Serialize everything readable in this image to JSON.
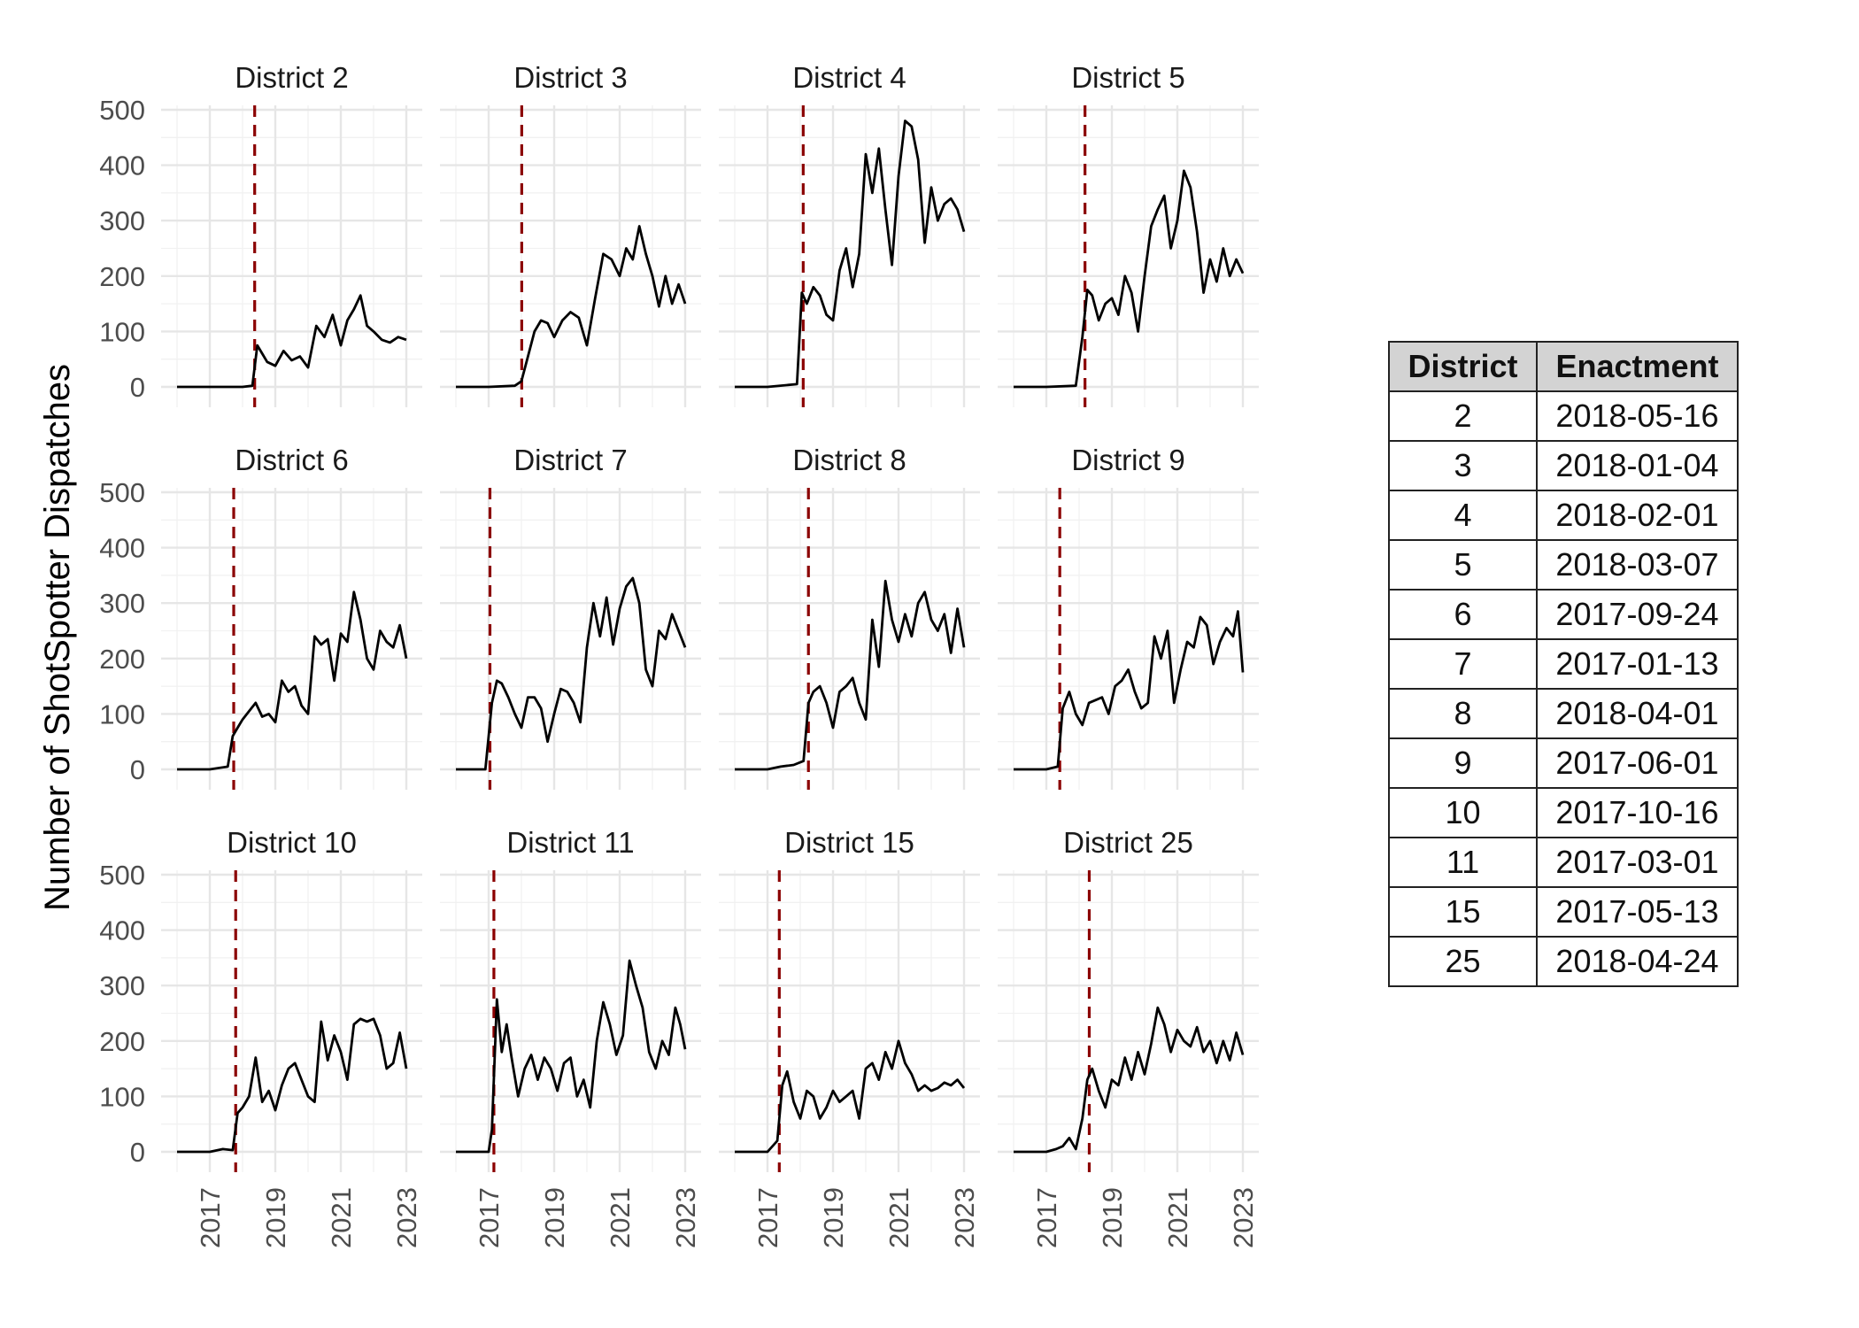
{
  "chart_data": {
    "type": "line",
    "facet_layout": "4 columns x 3 rows",
    "ylabel": "Number of ShotSpotter Dispatches",
    "ylim": [
      0,
      500
    ],
    "y_ticks": [
      0,
      100,
      200,
      300,
      400,
      500
    ],
    "x_ticks": [
      2017,
      2019,
      2021,
      2023
    ],
    "xlim": [
      2016.0,
      2023.0
    ],
    "grid": true,
    "line_color": "#000000",
    "enactment_line_color": "#8b0000",
    "enactment_line_style": "dashed",
    "panels": [
      {
        "title": "District 2",
        "enactment": 2018.37,
        "x": [
          2016.0,
          2017.0,
          2018.0,
          2018.3,
          2018.45,
          2018.6,
          2018.75,
          2019.0,
          2019.25,
          2019.5,
          2019.75,
          2020.0,
          2020.25,
          2020.5,
          2020.75,
          2021.0,
          2021.2,
          2021.4,
          2021.6,
          2021.8,
          2022.0,
          2022.25,
          2022.5,
          2022.75,
          2023.0
        ],
        "values": [
          0,
          0,
          0,
          2,
          75,
          60,
          45,
          38,
          65,
          48,
          55,
          35,
          110,
          90,
          130,
          75,
          120,
          140,
          165,
          110,
          100,
          85,
          80,
          90,
          85
        ]
      },
      {
        "title": "District 3",
        "enactment": 2018.01,
        "x": [
          2016.0,
          2017.0,
          2017.8,
          2018.0,
          2018.2,
          2018.4,
          2018.6,
          2018.8,
          2019.0,
          2019.25,
          2019.5,
          2019.75,
          2020.0,
          2020.25,
          2020.5,
          2020.75,
          2021.0,
          2021.2,
          2021.4,
          2021.6,
          2021.8,
          2022.0,
          2022.2,
          2022.4,
          2022.6,
          2022.8,
          2023.0
        ],
        "values": [
          0,
          0,
          2,
          10,
          55,
          100,
          120,
          115,
          90,
          120,
          135,
          125,
          75,
          160,
          240,
          230,
          200,
          250,
          230,
          290,
          240,
          200,
          145,
          200,
          150,
          185,
          150
        ]
      },
      {
        "title": "District 4",
        "enactment": 2018.09,
        "x": [
          2016.0,
          2017.0,
          2017.9,
          2018.05,
          2018.2,
          2018.4,
          2018.6,
          2018.8,
          2019.0,
          2019.2,
          2019.4,
          2019.6,
          2019.8,
          2020.0,
          2020.2,
          2020.4,
          2020.6,
          2020.8,
          2021.0,
          2021.2,
          2021.4,
          2021.6,
          2021.8,
          2022.0,
          2022.2,
          2022.4,
          2022.6,
          2022.8,
          2023.0
        ],
        "values": [
          0,
          0,
          5,
          170,
          150,
          180,
          165,
          130,
          120,
          210,
          250,
          180,
          240,
          420,
          350,
          430,
          320,
          220,
          380,
          480,
          470,
          410,
          260,
          360,
          300,
          330,
          340,
          320,
          280
        ]
      },
      {
        "title": "District 5",
        "enactment": 2018.18,
        "x": [
          2016.0,
          2017.0,
          2017.9,
          2018.1,
          2018.25,
          2018.4,
          2018.6,
          2018.8,
          2019.0,
          2019.2,
          2019.4,
          2019.6,
          2019.8,
          2020.0,
          2020.2,
          2020.4,
          2020.6,
          2020.8,
          2021.0,
          2021.2,
          2021.4,
          2021.6,
          2021.8,
          2022.0,
          2022.2,
          2022.4,
          2022.6,
          2022.8,
          2023.0
        ],
        "values": [
          0,
          0,
          2,
          90,
          175,
          165,
          120,
          150,
          160,
          130,
          200,
          170,
          100,
          200,
          290,
          320,
          345,
          250,
          300,
          390,
          360,
          280,
          170,
          230,
          190,
          250,
          200,
          230,
          205
        ]
      },
      {
        "title": "District 6",
        "enactment": 2017.73,
        "x": [
          2016.0,
          2017.0,
          2017.55,
          2017.7,
          2017.85,
          2018.0,
          2018.2,
          2018.4,
          2018.6,
          2018.8,
          2019.0,
          2019.2,
          2019.4,
          2019.6,
          2019.8,
          2020.0,
          2020.2,
          2020.4,
          2020.6,
          2020.8,
          2021.0,
          2021.2,
          2021.4,
          2021.6,
          2021.8,
          2022.0,
          2022.2,
          2022.4,
          2022.6,
          2022.8,
          2023.0
        ],
        "values": [
          0,
          0,
          5,
          60,
          75,
          90,
          105,
          120,
          95,
          100,
          85,
          160,
          140,
          150,
          115,
          100,
          240,
          225,
          235,
          160,
          245,
          230,
          320,
          270,
          200,
          180,
          250,
          230,
          220,
          260,
          200
        ]
      },
      {
        "title": "District 7",
        "enactment": 2017.04,
        "x": [
          2016.0,
          2016.9,
          2017.1,
          2017.25,
          2017.4,
          2017.6,
          2017.8,
          2018.0,
          2018.2,
          2018.4,
          2018.6,
          2018.8,
          2019.0,
          2019.2,
          2019.4,
          2019.6,
          2019.8,
          2020.0,
          2020.2,
          2020.4,
          2020.6,
          2020.8,
          2021.0,
          2021.2,
          2021.4,
          2021.6,
          2021.8,
          2022.0,
          2022.2,
          2022.4,
          2022.6,
          2022.8,
          2023.0
        ],
        "values": [
          0,
          0,
          120,
          160,
          155,
          130,
          100,
          75,
          130,
          130,
          110,
          50,
          100,
          145,
          140,
          120,
          85,
          220,
          300,
          240,
          310,
          225,
          290,
          330,
          345,
          300,
          180,
          150,
          250,
          235,
          280,
          250,
          220
        ]
      },
      {
        "title": "District 8",
        "enactment": 2018.25,
        "x": [
          2016.0,
          2017.0,
          2017.4,
          2017.8,
          2018.1,
          2018.25,
          2018.4,
          2018.6,
          2018.8,
          2019.0,
          2019.2,
          2019.4,
          2019.6,
          2019.8,
          2020.0,
          2020.2,
          2020.4,
          2020.6,
          2020.8,
          2021.0,
          2021.2,
          2021.4,
          2021.6,
          2021.8,
          2022.0,
          2022.2,
          2022.4,
          2022.6,
          2022.8,
          2023.0
        ],
        "values": [
          0,
          0,
          5,
          8,
          15,
          120,
          140,
          150,
          120,
          75,
          140,
          150,
          165,
          120,
          90,
          270,
          185,
          340,
          270,
          230,
          280,
          240,
          300,
          320,
          270,
          250,
          280,
          210,
          290,
          220
        ]
      },
      {
        "title": "District 9",
        "enactment": 2017.41,
        "x": [
          2016.0,
          2017.0,
          2017.35,
          2017.5,
          2017.7,
          2017.9,
          2018.1,
          2018.3,
          2018.5,
          2018.7,
          2018.9,
          2019.1,
          2019.3,
          2019.5,
          2019.7,
          2019.9,
          2020.1,
          2020.3,
          2020.5,
          2020.7,
          2020.9,
          2021.1,
          2021.3,
          2021.5,
          2021.7,
          2021.9,
          2022.1,
          2022.3,
          2022.5,
          2022.7,
          2022.85,
          2023.0
        ],
        "values": [
          0,
          0,
          5,
          110,
          140,
          100,
          80,
          120,
          125,
          130,
          100,
          150,
          160,
          180,
          140,
          110,
          120,
          240,
          200,
          250,
          120,
          180,
          230,
          220,
          275,
          260,
          190,
          230,
          255,
          240,
          285,
          175
        ]
      },
      {
        "title": "District 10",
        "enactment": 2017.79,
        "x": [
          2016.0,
          2017.0,
          2017.4,
          2017.7,
          2017.85,
          2018.0,
          2018.2,
          2018.4,
          2018.6,
          2018.8,
          2019.0,
          2019.2,
          2019.4,
          2019.6,
          2019.8,
          2020.0,
          2020.2,
          2020.4,
          2020.6,
          2020.8,
          2021.0,
          2021.2,
          2021.4,
          2021.6,
          2021.8,
          2022.0,
          2022.2,
          2022.4,
          2022.6,
          2022.8,
          2023.0
        ],
        "values": [
          0,
          0,
          5,
          3,
          70,
          80,
          100,
          170,
          90,
          110,
          75,
          120,
          150,
          160,
          130,
          100,
          90,
          235,
          165,
          210,
          180,
          130,
          230,
          240,
          235,
          240,
          210,
          150,
          160,
          215,
          150
        ]
      },
      {
        "title": "District 11",
        "enactment": 2017.16,
        "x": [
          2016.0,
          2017.0,
          2017.1,
          2017.25,
          2017.4,
          2017.55,
          2017.7,
          2017.9,
          2018.1,
          2018.3,
          2018.5,
          2018.7,
          2018.9,
          2019.1,
          2019.3,
          2019.5,
          2019.7,
          2019.9,
          2020.1,
          2020.3,
          2020.5,
          2020.7,
          2020.9,
          2021.1,
          2021.3,
          2021.5,
          2021.7,
          2021.9,
          2022.1,
          2022.3,
          2022.5,
          2022.7,
          2022.85,
          2023.0
        ],
        "values": [
          0,
          0,
          40,
          275,
          180,
          230,
          170,
          100,
          150,
          175,
          130,
          170,
          150,
          110,
          160,
          170,
          100,
          130,
          80,
          200,
          270,
          230,
          175,
          210,
          345,
          300,
          260,
          180,
          150,
          200,
          175,
          260,
          230,
          185
        ]
      },
      {
        "title": "District 15",
        "enactment": 2017.36,
        "x": [
          2016.0,
          2017.0,
          2017.3,
          2017.45,
          2017.6,
          2017.8,
          2018.0,
          2018.2,
          2018.4,
          2018.6,
          2018.8,
          2019.0,
          2019.2,
          2019.4,
          2019.6,
          2019.8,
          2020.0,
          2020.2,
          2020.4,
          2020.6,
          2020.8,
          2021.0,
          2021.2,
          2021.4,
          2021.6,
          2021.8,
          2022.0,
          2022.2,
          2022.4,
          2022.6,
          2022.8,
          2023.0
        ],
        "values": [
          0,
          0,
          20,
          120,
          145,
          90,
          60,
          110,
          100,
          60,
          80,
          110,
          90,
          100,
          110,
          60,
          150,
          160,
          130,
          180,
          150,
          200,
          160,
          140,
          110,
          120,
          110,
          115,
          125,
          120,
          130,
          115
        ]
      },
      {
        "title": "District 25",
        "enactment": 2018.31,
        "x": [
          2016.0,
          2017.0,
          2017.3,
          2017.5,
          2017.7,
          2017.9,
          2018.1,
          2018.25,
          2018.4,
          2018.6,
          2018.8,
          2019.0,
          2019.2,
          2019.4,
          2019.6,
          2019.8,
          2020.0,
          2020.2,
          2020.4,
          2020.6,
          2020.8,
          2021.0,
          2021.2,
          2021.4,
          2021.6,
          2021.8,
          2022.0,
          2022.2,
          2022.4,
          2022.6,
          2022.8,
          2023.0
        ],
        "values": [
          0,
          0,
          5,
          10,
          25,
          5,
          60,
          130,
          150,
          110,
          80,
          130,
          120,
          170,
          130,
          180,
          140,
          195,
          260,
          230,
          180,
          220,
          200,
          190,
          225,
          180,
          200,
          160,
          200,
          165,
          215,
          175
        ]
      }
    ]
  },
  "table": {
    "headers": [
      "District",
      "Enactment"
    ],
    "rows": [
      [
        "2",
        "2018-05-16"
      ],
      [
        "3",
        "2018-01-04"
      ],
      [
        "4",
        "2018-02-01"
      ],
      [
        "5",
        "2018-03-07"
      ],
      [
        "6",
        "2017-09-24"
      ],
      [
        "7",
        "2017-01-13"
      ],
      [
        "8",
        "2018-04-01"
      ],
      [
        "9",
        "2017-06-01"
      ],
      [
        "10",
        "2017-10-16"
      ],
      [
        "11",
        "2017-03-01"
      ],
      [
        "15",
        "2017-05-13"
      ],
      [
        "25",
        "2018-04-24"
      ]
    ]
  }
}
